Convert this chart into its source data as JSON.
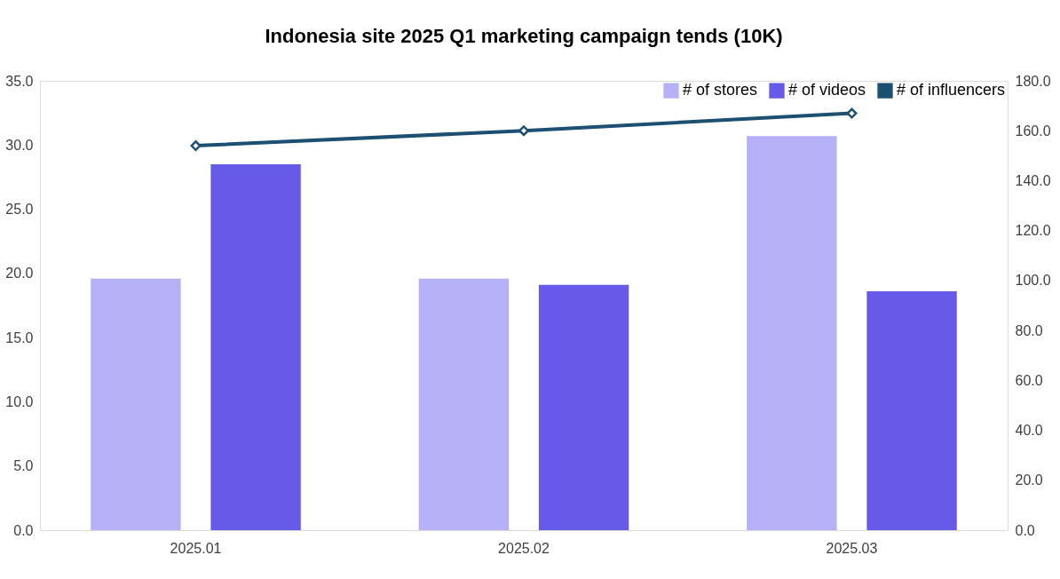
{
  "chart_data": {
    "type": "bar",
    "title": "Indonesia  site 2025 Q1 marketing campaign tends (10K)",
    "categories": [
      "2025.01",
      "2025.02",
      "2025.03"
    ],
    "series": [
      {
        "name": "# of stores",
        "color": "#b6b1f7",
        "values": [
          19.6,
          19.6,
          30.7
        ]
      },
      {
        "name": "# of videos",
        "color": "#675ae9",
        "values": [
          28.5,
          19.1,
          18.6
        ]
      },
      {
        "name": "# of influencers",
        "type": "line",
        "axis": "y2",
        "color": "#1d4f73",
        "values": [
          154,
          160,
          167
        ]
      }
    ],
    "ylim": [
      0,
      35
    ],
    "yticks": [
      {
        "value": 0,
        "label": "0.0"
      },
      {
        "value": 5,
        "label": "5.0"
      },
      {
        "value": 10,
        "label": "10.0"
      },
      {
        "value": 15,
        "label": "15.0"
      },
      {
        "value": 20,
        "label": "20.0"
      },
      {
        "value": 25,
        "label": "25.0"
      },
      {
        "value": 30,
        "label": "30.0"
      },
      {
        "value": 35,
        "label": "35.0"
      }
    ],
    "y2lim": [
      0,
      180
    ],
    "y2ticks": [
      {
        "value": 0,
        "label": "0.0"
      },
      {
        "value": 20,
        "label": "20.0"
      },
      {
        "value": 40,
        "label": "40.0"
      },
      {
        "value": 60,
        "label": "60.0"
      },
      {
        "value": 80,
        "label": "80.0"
      },
      {
        "value": 100,
        "label": "100.0"
      },
      {
        "value": 120,
        "label": "120.0"
      },
      {
        "value": 140,
        "label": "140.0"
      },
      {
        "value": 160,
        "label": "160.0"
      },
      {
        "value": 180,
        "label": "180.0"
      }
    ],
    "grid": false,
    "legend": "top right",
    "marker": "diamond",
    "line_style": "solid"
  }
}
